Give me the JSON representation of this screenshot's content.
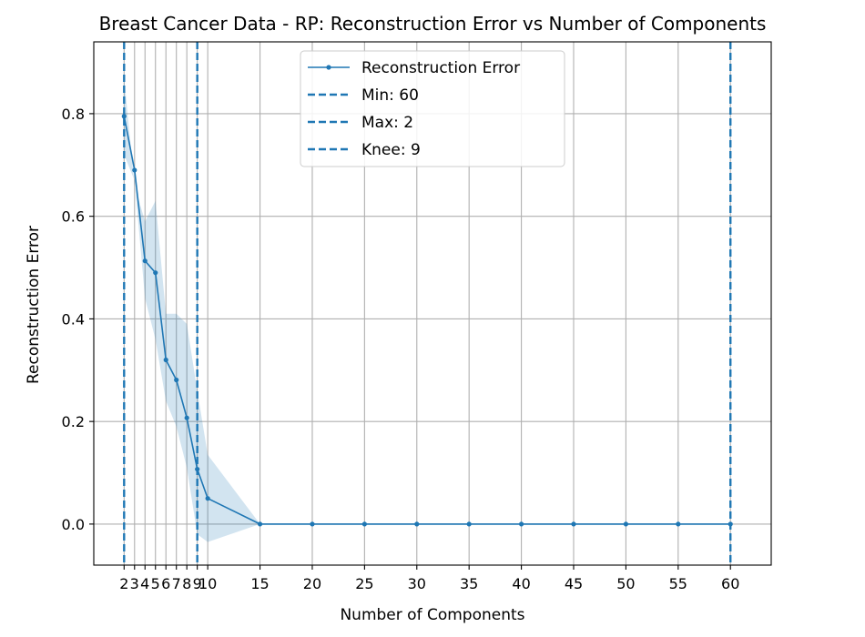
{
  "chart_data": {
    "type": "line",
    "title": "Breast Cancer Data - RP: Reconstruction Error vs Number of Components",
    "xlabel": "Number of Components",
    "ylabel": "Reconstruction Error",
    "xlim": [
      -0.9,
      63.9
    ],
    "ylim": [
      -0.08,
      0.94
    ],
    "x_ticks": [
      2,
      3,
      4,
      5,
      6,
      7,
      8,
      9,
      10,
      15,
      20,
      25,
      30,
      35,
      40,
      45,
      50,
      55,
      60
    ],
    "y_ticks": [
      0.0,
      0.2,
      0.4,
      0.6,
      0.8
    ],
    "y_tick_labels": [
      "0.0",
      "0.2",
      "0.4",
      "0.6",
      "0.8"
    ],
    "grid": true,
    "legend_position": "top-center",
    "series": [
      {
        "name": "Reconstruction Error",
        "color": "#1f77b4",
        "x": [
          2,
          3,
          4,
          5,
          6,
          7,
          8,
          9,
          10,
          15,
          20,
          25,
          30,
          35,
          40,
          45,
          50,
          55,
          60
        ],
        "y": [
          0.795,
          0.69,
          0.513,
          0.49,
          0.32,
          0.281,
          0.207,
          0.107,
          0.05,
          0.0,
          0.0,
          0.0,
          0.0,
          0.0,
          0.0,
          0.0,
          0.0,
          0.0,
          0.0
        ],
        "band_upper": [
          0.87,
          0.66,
          0.59,
          0.63,
          0.41,
          0.41,
          0.39,
          0.26,
          0.135,
          0.0,
          0.0,
          0.0,
          0.0,
          0.0,
          0.0,
          0.0,
          0.0,
          0.0,
          0.0
        ],
        "band_lower": [
          0.72,
          0.67,
          0.44,
          0.36,
          0.24,
          0.19,
          0.11,
          -0.02,
          -0.035,
          0.0,
          0.0,
          0.0,
          0.0,
          0.0,
          0.0,
          0.0,
          0.0,
          0.0,
          0.0
        ]
      }
    ],
    "vlines": [
      {
        "name": "Min: 60",
        "x": 60,
        "color": "#1f77b4"
      },
      {
        "name": "Max: 2",
        "x": 2,
        "color": "#1f77b4"
      },
      {
        "name": "Knee: 9",
        "x": 9,
        "color": "#1f77b4"
      }
    ]
  }
}
